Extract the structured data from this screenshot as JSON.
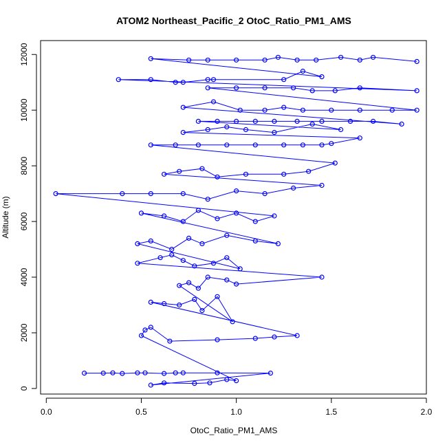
{
  "chart_data": {
    "type": "scatter",
    "title": "ATOM2 Northeast_Pacific_2 OtoC_Ratio_PM1_AMS",
    "xlabel": "OtoC_Ratio_PM1_AMS",
    "ylabel": "Altitude (m)",
    "xlim": [
      -0.03,
      2.0
    ],
    "ylim": [
      -200,
      12500
    ],
    "xticks": [
      "0.0",
      "0.5",
      "1.0",
      "1.5",
      "2.0"
    ],
    "xtick_values": [
      0.0,
      0.5,
      1.0,
      1.5,
      2.0
    ],
    "yticks": [
      "0",
      "2000",
      "4000",
      "6000",
      "8000",
      "10000",
      "12000"
    ],
    "ytick_values": [
      0,
      2000,
      4000,
      6000,
      8000,
      10000,
      12000
    ],
    "grid": false,
    "series_color": "#0000ff",
    "points": [
      [
        0.2,
        550
      ],
      [
        0.3,
        550
      ],
      [
        0.35,
        560
      ],
      [
        0.4,
        540
      ],
      [
        0.48,
        560
      ],
      [
        0.52,
        560
      ],
      [
        0.62,
        540
      ],
      [
        0.68,
        560
      ],
      [
        0.72,
        560
      ],
      [
        0.9,
        560
      ],
      [
        1.18,
        550
      ],
      [
        0.55,
        120
      ],
      [
        0.62,
        200
      ],
      [
        0.78,
        180
      ],
      [
        0.86,
        200
      ],
      [
        0.95,
        320
      ],
      [
        1.0,
        280
      ],
      [
        0.5,
        1900
      ],
      [
        0.52,
        2100
      ],
      [
        0.55,
        2200
      ],
      [
        0.65,
        1700
      ],
      [
        0.9,
        1750
      ],
      [
        1.1,
        1800
      ],
      [
        1.2,
        1850
      ],
      [
        1.32,
        1900
      ],
      [
        0.55,
        3100
      ],
      [
        0.62,
        3050
      ],
      [
        0.7,
        3000
      ],
      [
        0.78,
        3200
      ],
      [
        0.82,
        2800
      ],
      [
        0.9,
        3300
      ],
      [
        0.98,
        2400
      ],
      [
        0.7,
        3700
      ],
      [
        0.75,
        3800
      ],
      [
        0.8,
        3600
      ],
      [
        0.85,
        4000
      ],
      [
        0.95,
        3900
      ],
      [
        1.0,
        3750
      ],
      [
        1.45,
        4000
      ],
      [
        0.48,
        4500
      ],
      [
        0.6,
        4700
      ],
      [
        0.66,
        4800
      ],
      [
        0.72,
        4600
      ],
      [
        0.78,
        4400
      ],
      [
        0.88,
        4500
      ],
      [
        0.95,
        4700
      ],
      [
        1.02,
        4300
      ],
      [
        0.48,
        5200
      ],
      [
        0.55,
        5300
      ],
      [
        0.66,
        5000
      ],
      [
        0.75,
        5400
      ],
      [
        0.82,
        5200
      ],
      [
        0.95,
        5500
      ],
      [
        1.1,
        5300
      ],
      [
        1.22,
        5200
      ],
      [
        0.5,
        6300
      ],
      [
        0.62,
        6200
      ],
      [
        0.72,
        6000
      ],
      [
        0.8,
        6400
      ],
      [
        0.9,
        6100
      ],
      [
        1.0,
        6300
      ],
      [
        1.1,
        6000
      ],
      [
        1.2,
        6200
      ],
      [
        0.05,
        7000
      ],
      [
        0.4,
        7000
      ],
      [
        0.55,
        7000
      ],
      [
        0.72,
        7000
      ],
      [
        0.85,
        6800
      ],
      [
        1.0,
        7100
      ],
      [
        1.15,
        7000
      ],
      [
        1.3,
        7200
      ],
      [
        1.45,
        7300
      ],
      [
        0.62,
        7700
      ],
      [
        0.7,
        7800
      ],
      [
        0.82,
        7900
      ],
      [
        0.9,
        7600
      ],
      [
        1.05,
        7700
      ],
      [
        1.25,
        7700
      ],
      [
        1.38,
        7800
      ],
      [
        1.52,
        8100
      ],
      [
        0.55,
        8750
      ],
      [
        0.68,
        8750
      ],
      [
        0.8,
        8750
      ],
      [
        0.95,
        8750
      ],
      [
        1.1,
        8750
      ],
      [
        1.25,
        8750
      ],
      [
        1.35,
        8750
      ],
      [
        1.45,
        8750
      ],
      [
        1.5,
        8800
      ],
      [
        1.65,
        9000
      ],
      [
        0.72,
        9200
      ],
      [
        0.85,
        9300
      ],
      [
        0.95,
        9400
      ],
      [
        1.05,
        9300
      ],
      [
        1.2,
        9200
      ],
      [
        1.4,
        9500
      ],
      [
        1.55,
        9300
      ],
      [
        0.8,
        9600
      ],
      [
        0.9,
        9600
      ],
      [
        1.0,
        9600
      ],
      [
        1.1,
        9600
      ],
      [
        1.2,
        9600
      ],
      [
        1.32,
        9600
      ],
      [
        1.45,
        9600
      ],
      [
        1.6,
        9600
      ],
      [
        1.72,
        9600
      ],
      [
        1.87,
        9500
      ],
      [
        0.72,
        10100
      ],
      [
        0.88,
        10300
      ],
      [
        1.02,
        10000
      ],
      [
        1.15,
        10000
      ],
      [
        1.25,
        10100
      ],
      [
        1.35,
        10000
      ],
      [
        1.5,
        10000
      ],
      [
        1.65,
        10000
      ],
      [
        1.82,
        10000
      ],
      [
        1.95,
        10000
      ],
      [
        0.85,
        10800
      ],
      [
        1.0,
        10800
      ],
      [
        1.15,
        10800
      ],
      [
        1.3,
        10800
      ],
      [
        1.4,
        10700
      ],
      [
        1.52,
        10700
      ],
      [
        1.65,
        10800
      ],
      [
        1.95,
        10700
      ],
      [
        0.38,
        11100
      ],
      [
        0.55,
        11100
      ],
      [
        0.68,
        11000
      ],
      [
        0.72,
        11000
      ],
      [
        0.85,
        11100
      ],
      [
        0.88,
        11100
      ],
      [
        1.25,
        11100
      ],
      [
        1.35,
        11400
      ],
      [
        1.45,
        11200
      ],
      [
        0.55,
        11850
      ],
      [
        0.75,
        11800
      ],
      [
        0.85,
        11800
      ],
      [
        1.0,
        11800
      ],
      [
        1.15,
        11800
      ],
      [
        1.22,
        11900
      ],
      [
        1.32,
        11800
      ],
      [
        1.42,
        11800
      ],
      [
        1.55,
        11900
      ],
      [
        1.65,
        11800
      ],
      [
        1.72,
        11900
      ],
      [
        1.95,
        11750
      ]
    ]
  }
}
